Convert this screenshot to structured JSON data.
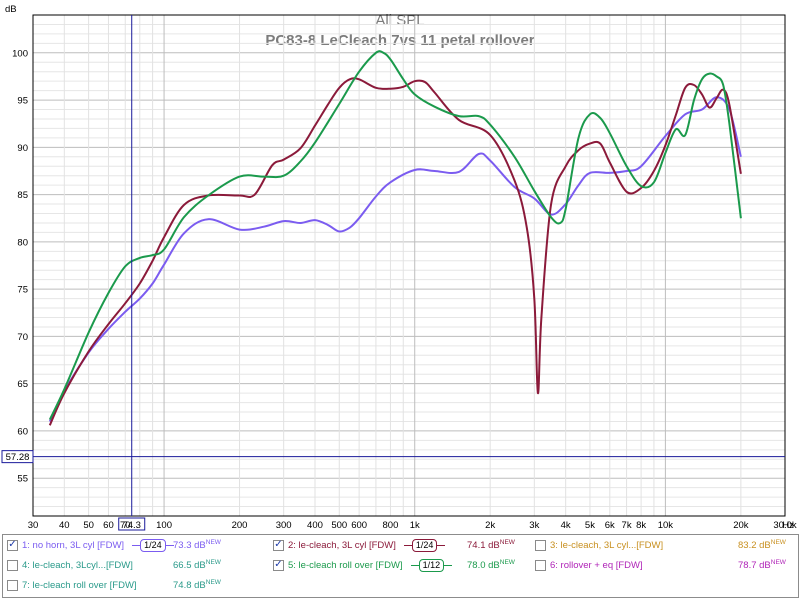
{
  "chart_data": {
    "type": "line",
    "title": "All SPL",
    "subtitle": "PC83-8 LeCleach 7vs 11 petal rollover",
    "ylabel": "dB",
    "xlabel": "",
    "x_unit_label": "Hz",
    "x_scale": "log",
    "xlim": [
      30,
      30000
    ],
    "ylim": [
      51,
      104
    ],
    "grid": true,
    "y_ticks": [
      55,
      60,
      65,
      70,
      75,
      80,
      85,
      90,
      95,
      100
    ],
    "x_ticks": [
      {
        "v": 30,
        "t": "30"
      },
      {
        "v": 40,
        "t": "40"
      },
      {
        "v": 50,
        "t": "50"
      },
      {
        "v": 60,
        "t": "60"
      },
      {
        "v": 70,
        "t": "70"
      },
      {
        "v": 100,
        "t": "100"
      },
      {
        "v": 200,
        "t": "200"
      },
      {
        "v": 300,
        "t": "300"
      },
      {
        "v": 400,
        "t": "400"
      },
      {
        "v": 500,
        "t": "500"
      },
      {
        "v": 600,
        "t": "600"
      },
      {
        "v": 800,
        "t": "800"
      },
      {
        "v": 1000,
        "t": "1k"
      },
      {
        "v": 2000,
        "t": "2k"
      },
      {
        "v": 3000,
        "t": "3k"
      },
      {
        "v": 4000,
        "t": "4k"
      },
      {
        "v": 5000,
        "t": "5k"
      },
      {
        "v": 6000,
        "t": "6k"
      },
      {
        "v": 7000,
        "t": "7k"
      },
      {
        "v": 8000,
        "t": "8k"
      },
      {
        "v": 10000,
        "t": "10k"
      },
      {
        "v": 20000,
        "t": "20k"
      },
      {
        "v": 30000,
        "t": "30.0k"
      }
    ],
    "cursor": {
      "x": 74.3,
      "x_label": "74.3",
      "y": 57.28,
      "y_label": "57.28"
    },
    "series": [
      {
        "name": "1: no horn, 3L cyl [FDW]",
        "color": "#7b5cf0",
        "x": [
          35,
          40,
          50,
          60,
          70,
          80,
          90,
          100,
          120,
          150,
          200,
          250,
          300,
          350,
          400,
          450,
          500,
          550,
          600,
          700,
          800,
          1000,
          1200,
          1500,
          1800,
          2000,
          2500,
          3000,
          3500,
          4000,
          4500,
          5000,
          6000,
          7000,
          8000,
          10000,
          12000,
          14000,
          16000,
          18000,
          20000
        ],
        "y": [
          61.0,
          64.2,
          68.3,
          70.8,
          72.6,
          74.0,
          75.6,
          77.6,
          80.9,
          82.4,
          81.3,
          81.6,
          82.2,
          82.0,
          82.3,
          81.8,
          81.1,
          81.5,
          82.5,
          84.8,
          86.3,
          87.6,
          87.5,
          87.4,
          89.3,
          88.6,
          85.8,
          84.6,
          82.9,
          84.0,
          86.0,
          87.3,
          87.3,
          87.5,
          88.0,
          91.2,
          93.5,
          94.0,
          95.3,
          94.0,
          89.0
        ]
      },
      {
        "name": "2: le-cleach, 3L cyl [FDW]",
        "color": "#8b1a3a",
        "x": [
          35,
          40,
          50,
          60,
          70,
          80,
          90,
          100,
          120,
          150,
          200,
          230,
          270,
          300,
          350,
          400,
          450,
          500,
          550,
          600,
          700,
          800,
          900,
          1000,
          1100,
          1200,
          1500,
          2000,
          2500,
          2800,
          3000,
          3100,
          3200,
          3500,
          4000,
          4500,
          5000,
          5500,
          6000,
          7000,
          8000,
          9000,
          10000,
          11000,
          12000,
          13000,
          14000,
          15000,
          16000,
          17000,
          18000,
          20000
        ],
        "y": [
          60.6,
          64.0,
          68.4,
          71.3,
          73.5,
          75.6,
          78.0,
          80.5,
          83.9,
          84.9,
          84.9,
          85.0,
          88.1,
          88.7,
          89.9,
          92.3,
          94.5,
          96.3,
          97.2,
          97.2,
          96.3,
          96.2,
          96.4,
          97.0,
          96.9,
          95.8,
          92.9,
          91.3,
          86.5,
          81.5,
          74.0,
          64.0,
          72.0,
          84.0,
          88.0,
          89.7,
          90.4,
          90.4,
          88.4,
          85.3,
          85.7,
          87.5,
          90.2,
          93.4,
          96.3,
          96.6,
          95.6,
          94.2,
          95.2,
          96.1,
          94.5,
          87.2
        ]
      },
      {
        "name": "5: le-cleach roll over [FDW]",
        "color": "#1b9a4c",
        "x": [
          35,
          40,
          50,
          60,
          70,
          80,
          90,
          100,
          120,
          150,
          200,
          250,
          300,
          350,
          400,
          500,
          600,
          700,
          750,
          800,
          900,
          1000,
          1200,
          1500,
          1800,
          2000,
          2500,
          3000,
          3500,
          3800,
          4000,
          4500,
          5000,
          5500,
          6000,
          7000,
          8000,
          9000,
          10000,
          11000,
          12000,
          13000,
          14000,
          15000,
          16000,
          17000,
          18000,
          20000
        ],
        "y": [
          61.2,
          64.4,
          70.4,
          74.6,
          77.4,
          78.3,
          78.6,
          79.2,
          82.6,
          84.9,
          86.9,
          86.9,
          87.0,
          88.5,
          90.5,
          94.6,
          98.0,
          100.0,
          100.0,
          99.3,
          97.2,
          95.6,
          94.3,
          93.3,
          93.3,
          92.4,
          89.0,
          85.4,
          82.6,
          82.0,
          83.5,
          91.0,
          93.5,
          93.1,
          91.5,
          88.0,
          85.9,
          86.3,
          89.4,
          91.9,
          91.3,
          95.0,
          97.2,
          97.8,
          97.5,
          96.6,
          92.5,
          82.5
        ]
      }
    ]
  },
  "legend": {
    "items": [
      {
        "label": "1: no horn, 3L cyl [FDW]",
        "checked": true,
        "check": "✓",
        "color": "#7b5cf0",
        "smoothing": "1/24",
        "value": "73.3 dB",
        "sup": "NEW",
        "value_color": "#7b5cf0"
      },
      {
        "label": "2: le-cleach, 3L cyl [FDW]",
        "checked": true,
        "check": "✓",
        "color": "#8b1a3a",
        "smoothing": "1/24",
        "value": "74.1 dB",
        "sup": "NEW",
        "value_color": "#8b1a3a"
      },
      {
        "label": "3: le-cleach, 3L cyl...[FDW]",
        "checked": false,
        "check": "",
        "color": "#c89020",
        "smoothing": "",
        "value": "83.2 dB",
        "sup": "NEW",
        "value_color": "#c89020"
      },
      {
        "label": "4: le-cleach, 3Lcyl...[FDW]",
        "checked": false,
        "check": "",
        "color": "#2a9a8a",
        "smoothing": "",
        "value": "66.5 dB",
        "sup": "NEW",
        "value_color": "#2a9a8a"
      },
      {
        "label": "5: le-cleach roll over [FDW]",
        "checked": true,
        "check": "✓",
        "color": "#1b9a4c",
        "smoothing": "1/12",
        "value": "78.0 dB",
        "sup": "NEW",
        "value_color": "#1b9a4c"
      },
      {
        "label": "6: rollover + eq [FDW]",
        "checked": false,
        "check": "",
        "color": "#b024b8",
        "smoothing": "",
        "value": "78.7 dB",
        "sup": "NEW",
        "value_color": "#b024b8"
      },
      {
        "label": "7: le-cleach roll over [FDW]",
        "checked": false,
        "check": "",
        "color": "#2a9a8a",
        "smoothing": "",
        "value": "74.8 dB",
        "sup": "NEW",
        "value_color": "#2a9a8a"
      }
    ]
  }
}
